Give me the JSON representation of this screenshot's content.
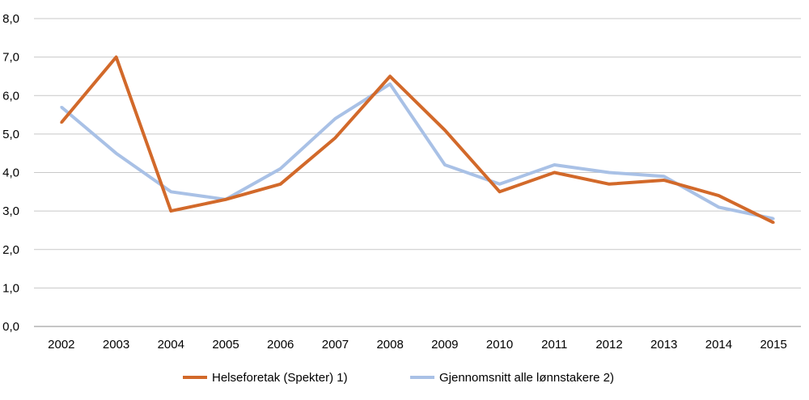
{
  "chart_data": {
    "type": "line",
    "title": "",
    "xlabel": "",
    "ylabel": "",
    "categories": [
      "2002",
      "2003",
      "2004",
      "2005",
      "2006",
      "2007",
      "2008",
      "2009",
      "2010",
      "2011",
      "2012",
      "2013",
      "2014",
      "2015"
    ],
    "ylim": [
      0,
      8
    ],
    "ytick_values": [
      0,
      1,
      2,
      3,
      4,
      5,
      6,
      7,
      8
    ],
    "ytick_labels": [
      "0,0",
      "1,0",
      "2,0",
      "3,0",
      "4,0",
      "5,0",
      "6,0",
      "7,0",
      "8,0"
    ],
    "grid": true,
    "legend_position": "bottom",
    "series": [
      {
        "name": "Helseforetak (Spekter) 1)",
        "color": "#d2692a",
        "values": [
          5.3,
          7.0,
          3.0,
          3.3,
          3.7,
          4.9,
          6.5,
          5.1,
          3.5,
          4.0,
          3.7,
          3.8,
          3.4,
          2.7
        ]
      },
      {
        "name": "Gjennomsnitt alle lønnstakere 2)",
        "color": "#a9c1e6",
        "values": [
          5.7,
          4.5,
          3.5,
          3.3,
          4.1,
          5.4,
          6.3,
          4.2,
          3.7,
          4.2,
          4.0,
          3.9,
          3.1,
          2.8
        ]
      }
    ]
  }
}
